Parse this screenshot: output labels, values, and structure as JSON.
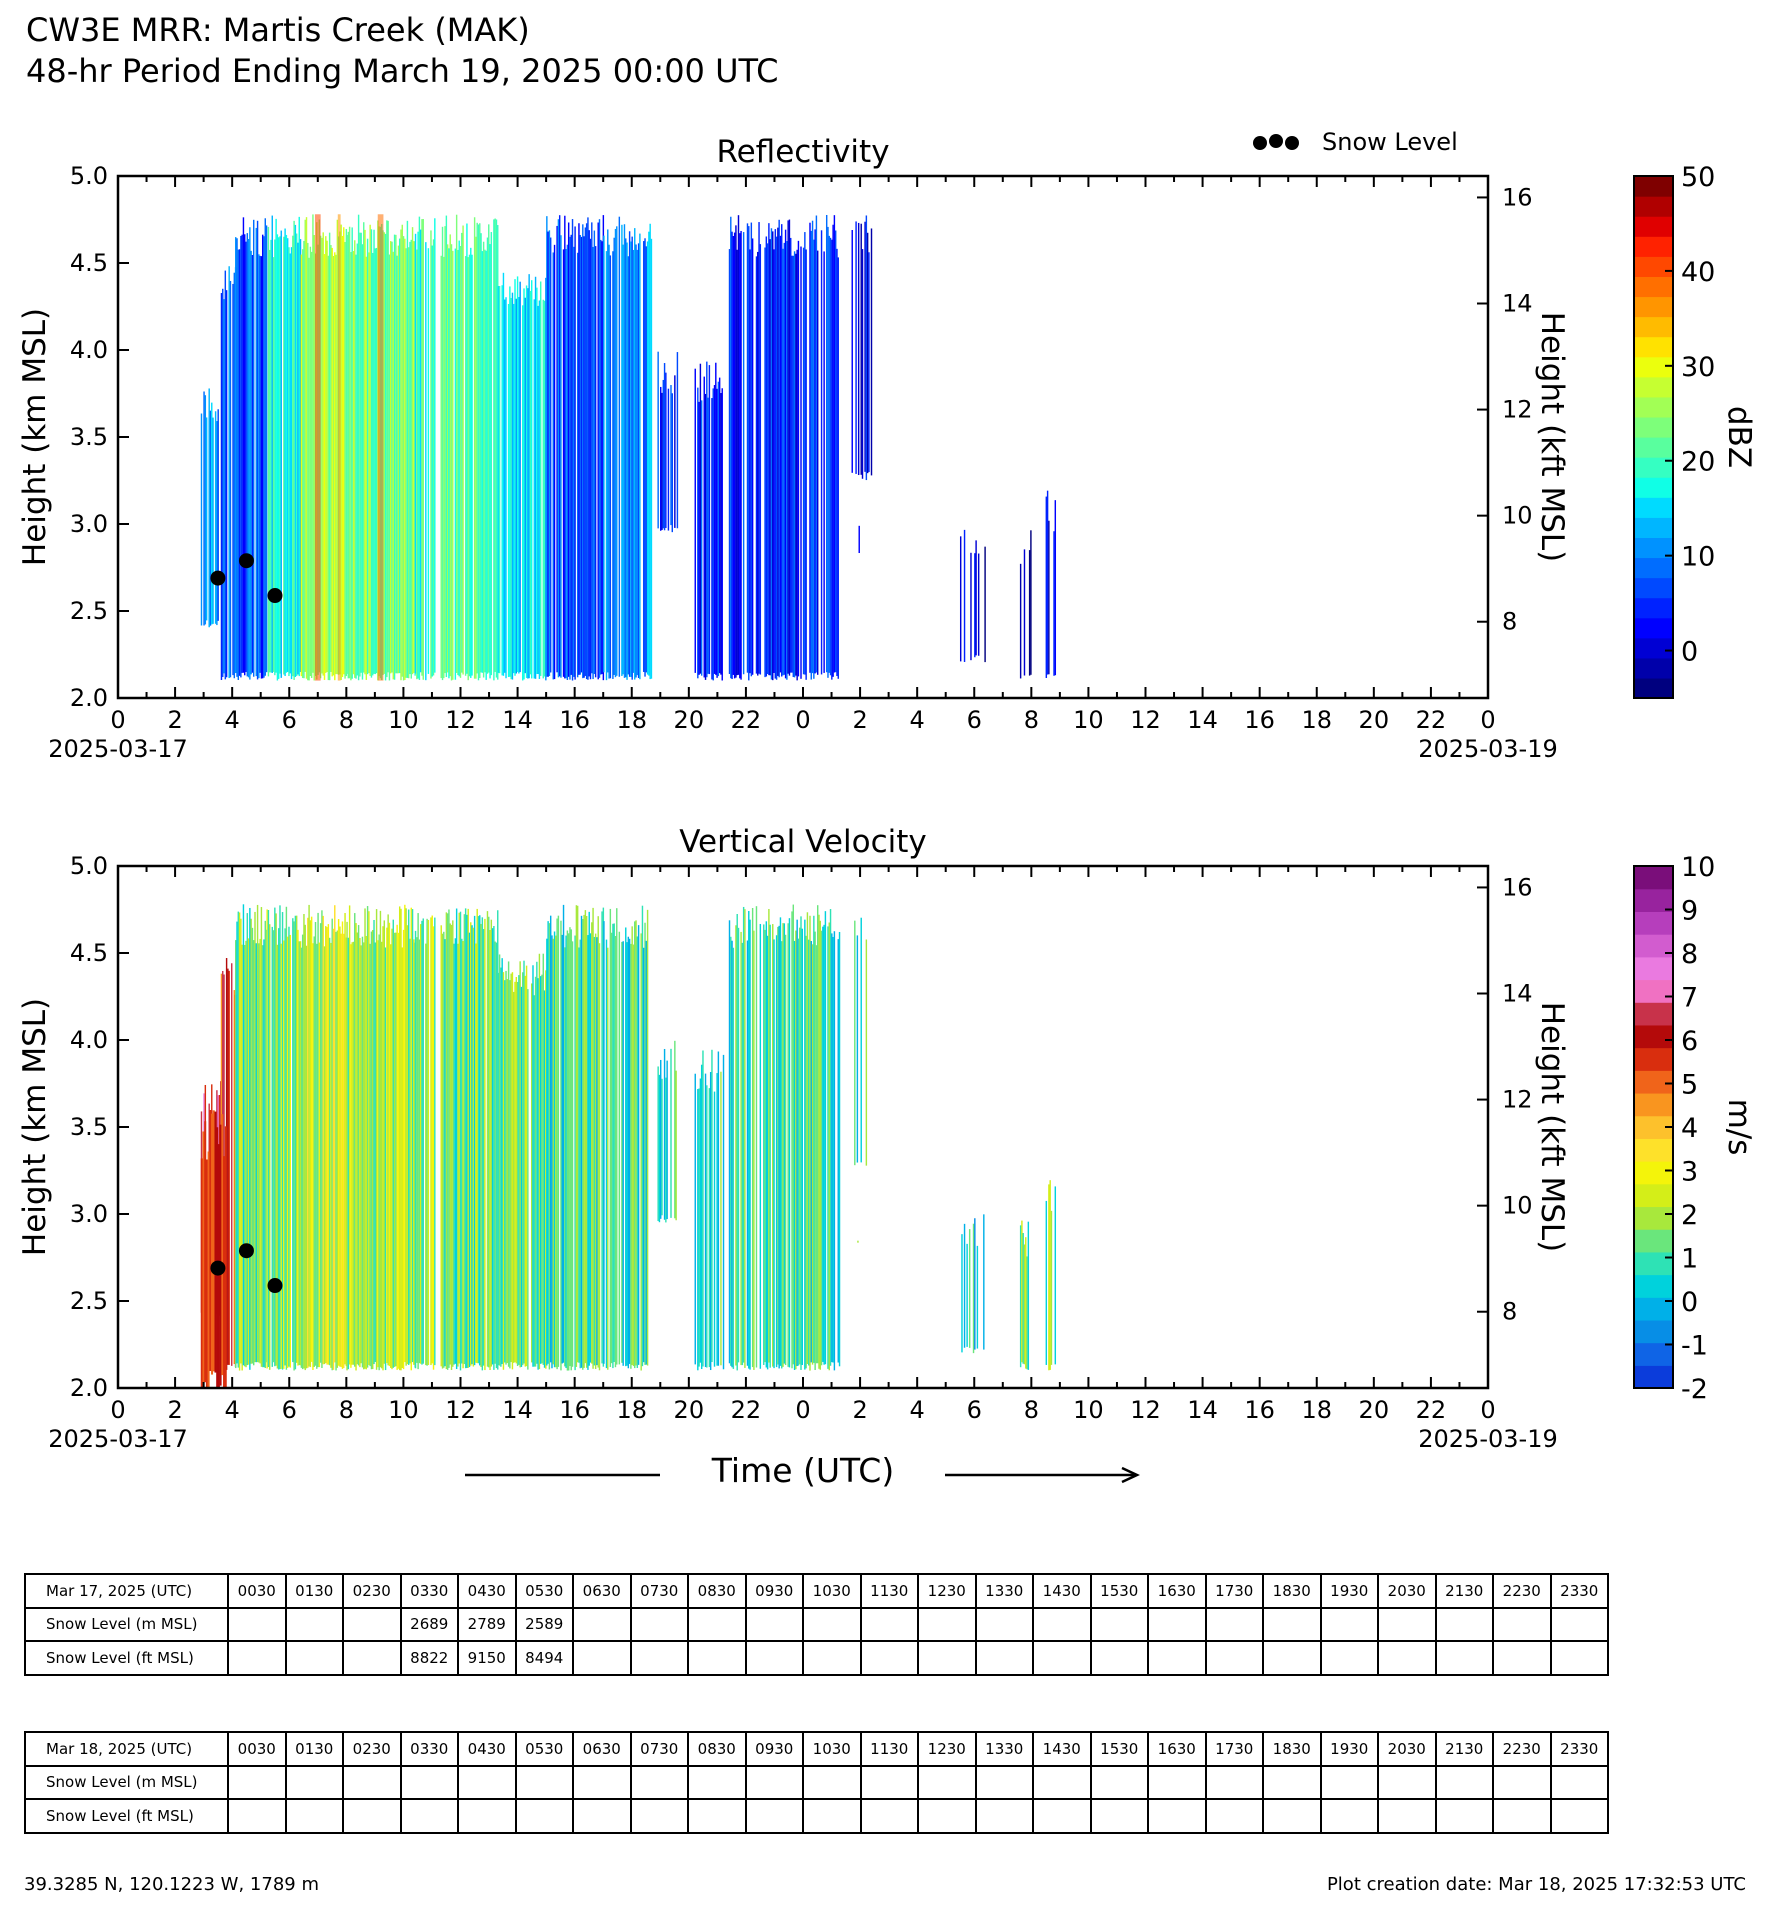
{
  "header": {
    "line1": "CW3E MRR: Martis Creek (MAK)",
    "line2": "48-hr Period Ending March 19, 2025 00:00 UTC"
  },
  "legend": {
    "snow_marker_label": "Snow Level",
    "marker_color": "#000000"
  },
  "x_axis": {
    "label": "Time (UTC)",
    "start_date_label": "2025-03-17",
    "end_date_label": "2025-03-19",
    "tick_labels": [
      "0",
      "2",
      "4",
      "6",
      "8",
      "10",
      "12",
      "14",
      "16",
      "18",
      "20",
      "22",
      "0",
      "2",
      "4",
      "6",
      "8",
      "10",
      "12",
      "14",
      "16",
      "18",
      "20",
      "22",
      "0"
    ]
  },
  "chart_data": [
    {
      "type": "heatmap",
      "title": "Reflectivity",
      "ylabel": "Height (km MSL)",
      "y2label": "Height (kft MSL)",
      "ylim": [
        2.0,
        5.0
      ],
      "y_ticks": [
        "2.0",
        "2.5",
        "3.0",
        "3.5",
        "4.0",
        "4.5",
        "5.0"
      ],
      "y2_ticks": [
        "8",
        "10",
        "12",
        "14",
        "16"
      ],
      "xlim_hours": [
        0,
        48
      ],
      "colorbar": {
        "label": "dBZ",
        "range": [
          -5,
          50
        ],
        "tick_labels": [
          "0",
          "10",
          "20",
          "30",
          "40",
          "50"
        ],
        "colors": [
          "#00007f",
          "#0000aa",
          "#0000d4",
          "#0000ff",
          "#0022ff",
          "#0049ff",
          "#006dff",
          "#0092ff",
          "#00b6ff",
          "#00dbff",
          "#10ffe6",
          "#35ffc2",
          "#59ff9e",
          "#7dff7a",
          "#a2ff55",
          "#c6ff31",
          "#ebff0d",
          "#ffe200",
          "#ffbb00",
          "#ff9500",
          "#ff6f00",
          "#ff4800",
          "#ff2200",
          "#e00000",
          "#b00000",
          "#7f0000"
        ]
      },
      "snow_level_points": [
        {
          "hour": 3.5,
          "km": 2.689
        },
        {
          "hour": 4.5,
          "km": 2.789
        },
        {
          "hour": 5.5,
          "km": 2.589
        }
      ]
    },
    {
      "type": "heatmap",
      "title": "Vertical Velocity",
      "ylabel": "Height (km MSL)",
      "y2label": "Height (kft MSL)",
      "ylim": [
        2.0,
        5.0
      ],
      "y_ticks": [
        "2.0",
        "2.5",
        "3.0",
        "3.5",
        "4.0",
        "4.5",
        "5.0"
      ],
      "y2_ticks": [
        "8",
        "10",
        "12",
        "14",
        "16"
      ],
      "xlim_hours": [
        0,
        48
      ],
      "colorbar": {
        "label": "m/s",
        "range": [
          -2,
          10
        ],
        "tick_labels": [
          "-2",
          "-1",
          "0",
          "1",
          "2",
          "3",
          "4",
          "5",
          "6",
          "7",
          "8",
          "9",
          "10"
        ],
        "colors": [
          "#0b3cdb",
          "#0f64e6",
          "#078ee6",
          "#00b0e8",
          "#00d2dc",
          "#2ee2b5",
          "#6ae67c",
          "#a8e83c",
          "#d4ee18",
          "#f4f40a",
          "#fee12a",
          "#fdc12c",
          "#f9951f",
          "#f0641a",
          "#d92e0e",
          "#b40a0a",
          "#c8324a",
          "#f071c2",
          "#ea7ae0",
          "#d25ccf",
          "#b63ebc",
          "#98239e",
          "#7a0e7a"
        ]
      },
      "snow_level_points": [
        {
          "hour": 3.5,
          "km": 2.689
        },
        {
          "hour": 4.5,
          "km": 2.789
        },
        {
          "hour": 5.5,
          "km": 2.589
        }
      ]
    }
  ],
  "tables": [
    {
      "date_label": "Mar 17, 2025 (UTC)",
      "m_label": "Snow Level (m MSL)",
      "ft_label": "Snow Level (ft MSL)",
      "times": [
        "0030",
        "0130",
        "0230",
        "0330",
        "0430",
        "0530",
        "0630",
        "0730",
        "0830",
        "0930",
        "1030",
        "1130",
        "1230",
        "1330",
        "1430",
        "1530",
        "1630",
        "1730",
        "1830",
        "1930",
        "2030",
        "2130",
        "2230",
        "2330"
      ],
      "m_values": [
        "",
        "",
        "",
        "2689",
        "2789",
        "2589",
        "",
        "",
        "",
        "",
        "",
        "",
        "",
        "",
        "",
        "",
        "",
        "",
        "",
        "",
        "",
        "",
        "",
        ""
      ],
      "ft_values": [
        "",
        "",
        "",
        "8822",
        "9150",
        "8494",
        "",
        "",
        "",
        "",
        "",
        "",
        "",
        "",
        "",
        "",
        "",
        "",
        "",
        "",
        "",
        "",
        "",
        ""
      ]
    },
    {
      "date_label": "Mar 18, 2025 (UTC)",
      "m_label": "Snow Level (m MSL)",
      "ft_label": "Snow Level (ft MSL)",
      "times": [
        "0030",
        "0130",
        "0230",
        "0330",
        "0430",
        "0530",
        "0630",
        "0730",
        "0830",
        "0930",
        "1030",
        "1130",
        "1230",
        "1330",
        "1430",
        "1530",
        "1630",
        "1730",
        "1830",
        "1930",
        "2030",
        "2130",
        "2230",
        "2330"
      ],
      "m_values": [
        "",
        "",
        "",
        "",
        "",
        "",
        "",
        "",
        "",
        "",
        "",
        "",
        "",
        "",
        "",
        "",
        "",
        "",
        "",
        "",
        "",
        "",
        "",
        ""
      ],
      "ft_values": [
        "",
        "",
        "",
        "",
        "",
        "",
        "",
        "",
        "",
        "",
        "",
        "",
        "",
        "",
        "",
        "",
        "",
        "",
        "",
        "",
        "",
        "",
        "",
        ""
      ]
    }
  ],
  "footer": {
    "location": "39.3285 N, 120.1223 W, 1789 m",
    "creation": "Plot creation date: Mar 18, 2025 17:32:53 UTC"
  }
}
